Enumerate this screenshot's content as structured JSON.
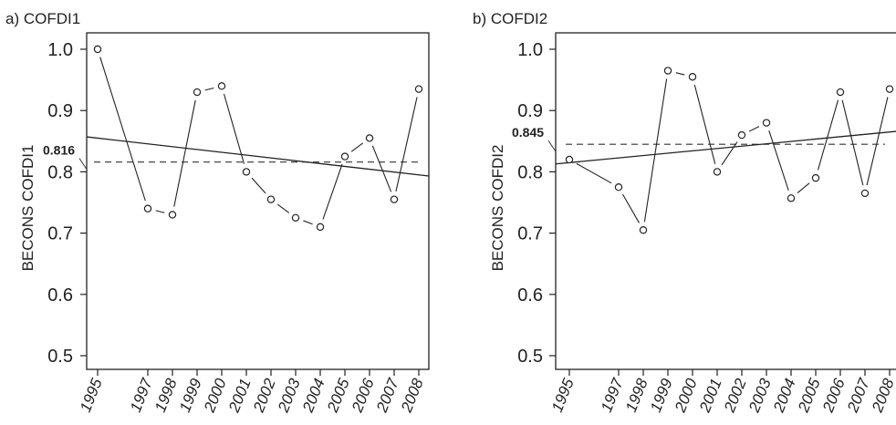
{
  "chart_data": [
    {
      "type": "scatter",
      "title": "a) COFDI1",
      "ylabel": "BECONS COFDI1",
      "xlabel": "",
      "ylim": [
        0.5,
        1.0
      ],
      "yticks": [
        0.5,
        0.6,
        0.7,
        0.8,
        0.9,
        1.0
      ],
      "ytick_labels": [
        "0.5",
        "0.6",
        "0.7",
        "0.8",
        "0.9",
        "1.0"
      ],
      "x_ticks": [
        "1995",
        "1997",
        "1998",
        "1999",
        "2000",
        "2001",
        "2002",
        "2003",
        "2004",
        "2005",
        "2006",
        "2007",
        "2008"
      ],
      "points": {
        "x": [
          1995,
          1997,
          1998,
          1999,
          2000,
          2001,
          2002,
          2003,
          2004,
          2005,
          2006,
          2007,
          2008
        ],
        "y": [
          1.0,
          0.74,
          0.73,
          0.93,
          0.94,
          0.8,
          0.755,
          0.725,
          0.71,
          0.825,
          0.855,
          0.755,
          0.935
        ]
      },
      "reference_line": {
        "value": 0.816,
        "label": "0.816",
        "style": "dashed"
      },
      "trend_line": {
        "x": [
          1995,
          2008
        ],
        "y": [
          0.855,
          0.795
        ],
        "style": "solid"
      },
      "grid": false
    },
    {
      "type": "scatter",
      "title": "b) COFDI2",
      "ylabel": "BECONS COFDI2",
      "xlabel": "",
      "ylim": [
        0.5,
        1.0
      ],
      "yticks": [
        0.5,
        0.6,
        0.7,
        0.8,
        0.9,
        1.0
      ],
      "ytick_labels": [
        "0.5",
        "0.6",
        "0.7",
        "0.8",
        "0.9",
        "1.0"
      ],
      "x_ticks": [
        "1995",
        "1997",
        "1998",
        "1999",
        "2000",
        "2001",
        "2002",
        "2003",
        "2004",
        "2005",
        "2006",
        "2007",
        "2008"
      ],
      "points": {
        "x": [
          1995,
          1997,
          1998,
          1999,
          2000,
          2001,
          2002,
          2003,
          2004,
          2005,
          2006,
          2007,
          2008
        ],
        "y": [
          0.82,
          0.775,
          0.705,
          0.965,
          0.955,
          0.8,
          0.86,
          0.88,
          0.757,
          0.79,
          0.93,
          0.765,
          0.935
        ]
      },
      "reference_line": {
        "value": 0.845,
        "label": "0.845",
        "style": "dashed"
      },
      "trend_line": {
        "x": [
          1995,
          2008
        ],
        "y": [
          0.815,
          0.865
        ],
        "style": "solid"
      },
      "grid": false
    }
  ]
}
